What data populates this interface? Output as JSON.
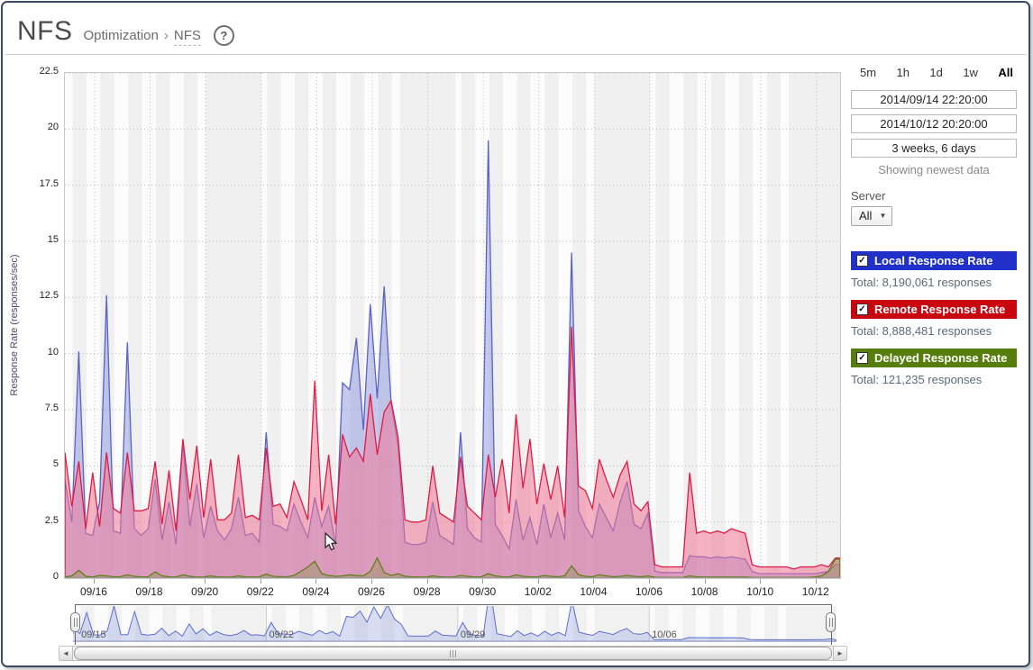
{
  "header": {
    "title": "NFS",
    "breadcrumb_section": "Optimization",
    "breadcrumb_sep": "›",
    "breadcrumb_page": "NFS",
    "help_icon": "?"
  },
  "controls": {
    "range_buttons": [
      {
        "label": "5m"
      },
      {
        "label": "1h"
      },
      {
        "label": "1d"
      },
      {
        "label": "1w"
      },
      {
        "label": "All",
        "active": true
      }
    ],
    "start_time": "2014/09/14 22:20:00",
    "end_time": "2014/10/12 20:20:00",
    "duration": "3 weeks, 6 days",
    "status": "Showing newest data",
    "server_label": "Server",
    "server_value": "All",
    "dropdown_caret": "▼"
  },
  "legend": [
    {
      "label": "Local Response Rate",
      "total": "Total: 8,190,061 responses",
      "color": "#2130c9",
      "check": "✓"
    },
    {
      "label": "Remote Response Rate",
      "total": "Total: 8,888,481 responses",
      "color": "#c9050f",
      "check": "✓"
    },
    {
      "label": "Delayed Response Rate",
      "total": "Total: 121,235 responses",
      "color": "#577d0d",
      "check": "✓"
    }
  ],
  "scrollbar": {
    "left_arrow": "◄",
    "right_arrow": "►"
  },
  "chart_data": {
    "type": "area",
    "title": "NFS response rates over time",
    "ylabel": "Response Rate (responses/sec)",
    "ylim": [
      0,
      22.5
    ],
    "y_ticks": [
      "0",
      "2.5",
      "5",
      "7.5",
      "10",
      "12.5",
      "15",
      "17.5",
      "20",
      "22.5"
    ],
    "x_range_days": [
      0,
      27.92
    ],
    "x_start_label": "2014/09/14 22:20:00",
    "x_tick_labels": [
      "09/16",
      "09/18",
      "09/20",
      "09/22",
      "09/24",
      "09/26",
      "09/28",
      "09/30",
      "10/02",
      "10/04",
      "10/06",
      "10/08",
      "10/10",
      "10/12"
    ],
    "x_tick_first_t": 1.07,
    "x_tick_step_days": 2,
    "sample_step_days": 0.25,
    "weekend_bands": [
      [
        5.07,
        7.07
      ],
      [
        12.07,
        14.07
      ],
      [
        19.07,
        21.07
      ],
      [
        26.07,
        27.92
      ]
    ],
    "grid": true,
    "legend_position": "right",
    "series": [
      {
        "name": "Local Response Rate",
        "line_color": "#5a63c6",
        "fill_color": "rgba(128,140,222,0.45)",
        "values": [
          4.4,
          2.5,
          10.1,
          2.0,
          1.9,
          3.4,
          12.6,
          2.1,
          2.0,
          10.5,
          2.2,
          1.9,
          2.2,
          4.4,
          1.7,
          3.4,
          1.5,
          6.0,
          2.3,
          4.2,
          1.8,
          3.2,
          2.1,
          1.7,
          2.2,
          3.6,
          1.9,
          2.0,
          1.6,
          6.5,
          2.4,
          2.3,
          2.1,
          3.3,
          2.5,
          1.8,
          3.6,
          2.3,
          3.2,
          1.5,
          8.7,
          8.4,
          10.7,
          6.6,
          12.2,
          8.0,
          13.0,
          7.8,
          5.9,
          1.6,
          1.5,
          1.5,
          1.6,
          3.4,
          1.9,
          1.7,
          1.5,
          6.5,
          2.2,
          1.8,
          1.6,
          19.5,
          2.4,
          1.9,
          1.3,
          3.5,
          1.7,
          2.7,
          1.5,
          3.3,
          1.8,
          2.9,
          1.7,
          14.5,
          3.0,
          2.3,
          1.8,
          3.3,
          2.7,
          2.1,
          3.4,
          4.3,
          2.4,
          2.2,
          2.9,
          0.3,
          0.25,
          0.25,
          0.25,
          0.25,
          1.0,
          0.95,
          0.95,
          0.9,
          0.95,
          0.9,
          0.95,
          0.9,
          0.85,
          0.3,
          0.2,
          0.2,
          0.2,
          0.2,
          0.2,
          0.2,
          0.2,
          0.2,
          0.2,
          0.25,
          0.3,
          0.6
        ]
      },
      {
        "name": "Remote Response Rate",
        "line_color": "#e01b44",
        "fill_color": "rgba(240,118,150,0.55)",
        "values": [
          5.6,
          3.2,
          5.2,
          2.2,
          4.7,
          2.3,
          5.6,
          3.1,
          2.9,
          5.6,
          3.0,
          3.0,
          3.1,
          5.2,
          2.4,
          4.8,
          2.1,
          6.2,
          3.5,
          5.9,
          2.7,
          5.3,
          2.6,
          2.6,
          2.9,
          5.5,
          2.7,
          2.8,
          2.6,
          5.8,
          3.2,
          3.3,
          2.7,
          4.3,
          3.5,
          2.6,
          8.8,
          3.0,
          5.5,
          2.4,
          6.4,
          5.4,
          5.8,
          5.2,
          8.2,
          5.5,
          7.4,
          7.9,
          6.3,
          2.6,
          2.5,
          2.5,
          2.6,
          5.0,
          2.9,
          2.7,
          2.5,
          5.4,
          3.2,
          2.9,
          2.6,
          5.5,
          3.6,
          5.3,
          2.9,
          7.3,
          4.0,
          6.2,
          3.3,
          5.1,
          3.5,
          5.0,
          2.7,
          11.2,
          4.1,
          3.9,
          3.1,
          5.3,
          4.4,
          3.6,
          4.6,
          5.2,
          3.3,
          3.0,
          3.4,
          0.6,
          0.5,
          0.5,
          0.5,
          0.5,
          4.7,
          2.0,
          2.1,
          2.0,
          2.1,
          2.0,
          2.2,
          2.1,
          2.0,
          0.6,
          0.5,
          0.5,
          0.5,
          0.5,
          0.5,
          0.4,
          0.5,
          0.5,
          0.5,
          0.6,
          0.5,
          0.9
        ]
      },
      {
        "name": "Delayed Response Rate",
        "line_color": "#5f7d18",
        "fill_color": "rgba(130,150,60,0.35)",
        "values": [
          0.05,
          0.1,
          0.35,
          0.08,
          0.05,
          0.12,
          0.1,
          0.06,
          0.06,
          0.15,
          0.08,
          0.05,
          0.06,
          0.28,
          0.1,
          0.06,
          0.05,
          0.15,
          0.08,
          0.05,
          0.05,
          0.1,
          0.06,
          0.05,
          0.05,
          0.1,
          0.06,
          0.05,
          0.06,
          0.18,
          0.08,
          0.06,
          0.06,
          0.12,
          0.3,
          0.5,
          0.75,
          0.2,
          0.12,
          0.08,
          0.1,
          0.15,
          0.12,
          0.1,
          0.3,
          0.9,
          0.25,
          0.12,
          0.2,
          0.08,
          0.06,
          0.05,
          0.05,
          0.1,
          0.06,
          0.05,
          0.05,
          0.12,
          0.08,
          0.05,
          0.06,
          0.2,
          0.1,
          0.06,
          0.05,
          0.15,
          0.08,
          0.06,
          0.05,
          0.12,
          0.08,
          0.06,
          0.1,
          0.55,
          0.15,
          0.08,
          0.06,
          0.15,
          0.1,
          0.06,
          0.08,
          0.12,
          0.08,
          0.06,
          0.1,
          0.04,
          0.03,
          0.03,
          0.03,
          0.03,
          0.1,
          0.06,
          0.05,
          0.05,
          0.05,
          0.05,
          0.05,
          0.05,
          0.05,
          0.03,
          0.03,
          0.03,
          0.03,
          0.03,
          0.03,
          0.03,
          0.03,
          0.03,
          0.05,
          0.1,
          0.3,
          0.85
        ]
      }
    ],
    "navigator": {
      "labels": [
        {
          "label": "09/15",
          "t": 0.2
        },
        {
          "label": "09/22",
          "t": 7.07
        },
        {
          "label": "09/29",
          "t": 14.07
        },
        {
          "label": "10/06",
          "t": 21.07
        }
      ],
      "gridline_ts": [
        7.07,
        14.07,
        21.07
      ],
      "series_shown": "Local Response Rate"
    }
  }
}
